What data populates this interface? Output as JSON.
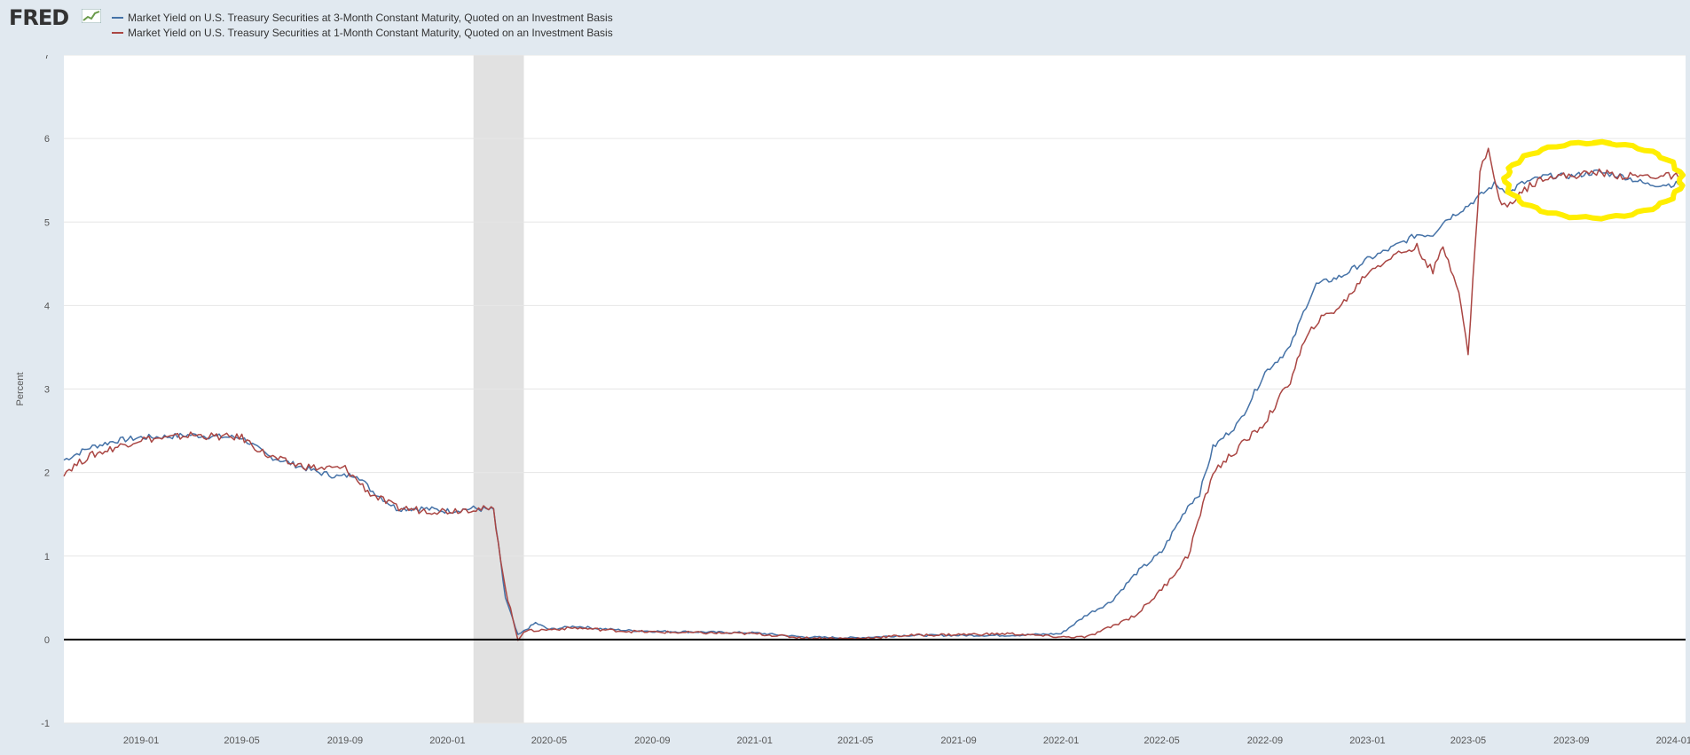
{
  "app": {
    "logo_text": "FRED"
  },
  "legend": [
    {
      "label": "Market Yield on U.S. Treasury Securities at 3-Month Constant Maturity, Quoted on an Investment Basis",
      "color": "#4572a7"
    },
    {
      "label": "Market Yield on U.S. Treasury Securities at 1-Month Constant Maturity, Quoted on an Investment Basis",
      "color": "#aa4643"
    }
  ],
  "colors": {
    "recession_band": "#e1e1e1",
    "annotation": "#ffee00",
    "zero_line": "#000000"
  },
  "chart_data": {
    "type": "line",
    "ylabel": "Percent",
    "ylim": [
      -1,
      7
    ],
    "yticks": [
      -1,
      0,
      1,
      2,
      3,
      4,
      5,
      6,
      7
    ],
    "xlim": [
      "2018-10-01",
      "2024-01-15"
    ],
    "xticks": [
      "2019-01",
      "2019-05",
      "2019-09",
      "2020-01",
      "2020-05",
      "2020-09",
      "2021-01",
      "2021-05",
      "2021-09",
      "2022-01",
      "2022-05",
      "2022-09",
      "2023-01",
      "2023-05",
      "2023-09",
      "2024-01"
    ],
    "grid": true,
    "legend_position": "top-left",
    "recession": {
      "start": "2020-02-01",
      "end": "2020-04-01"
    },
    "annotation": {
      "shape": "hand-drawn ellipse",
      "x": [
        "2023-06-15",
        "2024-01-10"
      ],
      "y": [
        5.05,
        5.95
      ]
    },
    "series": [
      {
        "name": "Market Yield on U.S. Treasury Securities at 3-Month Constant Maturity, Quoted on an Investment Basis",
        "color": "#4572a7",
        "points": [
          [
            "2018-10-01",
            2.15
          ],
          [
            "2018-11-01",
            2.3
          ],
          [
            "2018-12-01",
            2.38
          ],
          [
            "2019-01-01",
            2.42
          ],
          [
            "2019-02-01",
            2.43
          ],
          [
            "2019-03-01",
            2.45
          ],
          [
            "2019-04-01",
            2.43
          ],
          [
            "2019-05-01",
            2.42
          ],
          [
            "2019-06-01",
            2.2
          ],
          [
            "2019-07-01",
            2.1
          ],
          [
            "2019-08-01",
            2.0
          ],
          [
            "2019-08-25",
            1.95
          ],
          [
            "2019-09-15",
            1.98
          ],
          [
            "2019-10-01",
            1.8
          ],
          [
            "2019-11-01",
            1.57
          ],
          [
            "2019-12-01",
            1.57
          ],
          [
            "2020-01-01",
            1.54
          ],
          [
            "2020-02-01",
            1.57
          ],
          [
            "2020-02-25",
            1.55
          ],
          [
            "2020-03-10",
            0.5
          ],
          [
            "2020-03-25",
            0.05
          ],
          [
            "2020-04-01",
            0.1
          ],
          [
            "2020-04-15",
            0.2
          ],
          [
            "2020-05-01",
            0.12
          ],
          [
            "2020-06-01",
            0.16
          ],
          [
            "2020-07-01",
            0.13
          ],
          [
            "2020-08-01",
            0.11
          ],
          [
            "2020-09-01",
            0.1
          ],
          [
            "2020-11-01",
            0.09
          ],
          [
            "2021-01-01",
            0.08
          ],
          [
            "2021-03-01",
            0.03
          ],
          [
            "2021-05-01",
            0.02
          ],
          [
            "2021-07-01",
            0.05
          ],
          [
            "2021-09-01",
            0.05
          ],
          [
            "2021-11-01",
            0.05
          ],
          [
            "2022-01-01",
            0.07
          ],
          [
            "2022-02-01",
            0.3
          ],
          [
            "2022-03-01",
            0.45
          ],
          [
            "2022-04-01",
            0.8
          ],
          [
            "2022-05-01",
            1.05
          ],
          [
            "2022-06-01",
            1.6
          ],
          [
            "2022-06-15",
            1.75
          ],
          [
            "2022-07-01",
            2.3
          ],
          [
            "2022-08-01",
            2.6
          ],
          [
            "2022-09-01",
            3.2
          ],
          [
            "2022-10-01",
            3.5
          ],
          [
            "2022-10-20",
            4.0
          ],
          [
            "2022-11-01",
            4.25
          ],
          [
            "2022-12-01",
            4.35
          ],
          [
            "2023-01-01",
            4.55
          ],
          [
            "2023-02-01",
            4.7
          ],
          [
            "2023-03-01",
            4.85
          ],
          [
            "2023-03-20",
            4.85
          ],
          [
            "2023-04-01",
            5.0
          ],
          [
            "2023-05-01",
            5.2
          ],
          [
            "2023-06-01",
            5.45
          ],
          [
            "2023-06-20",
            5.35
          ],
          [
            "2023-07-01",
            5.45
          ],
          [
            "2023-08-01",
            5.55
          ],
          [
            "2023-09-01",
            5.55
          ],
          [
            "2023-10-01",
            5.6
          ],
          [
            "2023-11-01",
            5.55
          ],
          [
            "2023-12-01",
            5.45
          ],
          [
            "2024-01-01",
            5.45
          ],
          [
            "2024-01-12",
            5.47
          ]
        ]
      },
      {
        "name": "Market Yield on U.S. Treasury Securities at 1-Month Constant Maturity, Quoted on an Investment Basis",
        "color": "#aa4643",
        "points": [
          [
            "2018-10-01",
            2.0
          ],
          [
            "2018-11-01",
            2.2
          ],
          [
            "2018-12-01",
            2.3
          ],
          [
            "2019-01-01",
            2.4
          ],
          [
            "2019-02-01",
            2.41
          ],
          [
            "2019-03-01",
            2.45
          ],
          [
            "2019-04-01",
            2.43
          ],
          [
            "2019-05-01",
            2.42
          ],
          [
            "2019-06-01",
            2.2
          ],
          [
            "2019-07-01",
            2.1
          ],
          [
            "2019-08-01",
            2.05
          ],
          [
            "2019-09-01",
            2.05
          ],
          [
            "2019-10-01",
            1.75
          ],
          [
            "2019-11-01",
            1.58
          ],
          [
            "2019-12-01",
            1.55
          ],
          [
            "2020-01-01",
            1.54
          ],
          [
            "2020-02-01",
            1.57
          ],
          [
            "2020-02-25",
            1.55
          ],
          [
            "2020-03-10",
            0.6
          ],
          [
            "2020-03-25",
            0.0
          ],
          [
            "2020-04-01",
            0.1
          ],
          [
            "2020-05-01",
            0.12
          ],
          [
            "2020-06-01",
            0.14
          ],
          [
            "2020-07-01",
            0.12
          ],
          [
            "2020-08-01",
            0.1
          ],
          [
            "2020-09-01",
            0.09
          ],
          [
            "2020-11-01",
            0.08
          ],
          [
            "2021-01-01",
            0.07
          ],
          [
            "2021-03-01",
            0.02
          ],
          [
            "2021-05-01",
            0.01
          ],
          [
            "2021-07-01",
            0.05
          ],
          [
            "2021-09-01",
            0.06
          ],
          [
            "2021-11-01",
            0.07
          ],
          [
            "2022-01-01",
            0.03
          ],
          [
            "2022-02-01",
            0.03
          ],
          [
            "2022-03-01",
            0.15
          ],
          [
            "2022-04-01",
            0.3
          ],
          [
            "2022-05-01",
            0.6
          ],
          [
            "2022-06-01",
            1.0
          ],
          [
            "2022-07-01",
            2.0
          ],
          [
            "2022-08-01",
            2.3
          ],
          [
            "2022-09-01",
            2.6
          ],
          [
            "2022-10-01",
            3.1
          ],
          [
            "2022-10-15",
            3.5
          ],
          [
            "2022-11-01",
            3.8
          ],
          [
            "2022-12-01",
            4.0
          ],
          [
            "2023-01-01",
            4.4
          ],
          [
            "2023-02-01",
            4.6
          ],
          [
            "2023-03-01",
            4.7
          ],
          [
            "2023-03-20",
            4.4
          ],
          [
            "2023-04-01",
            4.7
          ],
          [
            "2023-04-20",
            4.2
          ],
          [
            "2023-05-01",
            3.4
          ],
          [
            "2023-05-15",
            5.6
          ],
          [
            "2023-05-25",
            5.9
          ],
          [
            "2023-06-01",
            5.5
          ],
          [
            "2023-06-10",
            5.2
          ],
          [
            "2023-06-20",
            5.2
          ],
          [
            "2023-07-01",
            5.35
          ],
          [
            "2023-08-01",
            5.55
          ],
          [
            "2023-09-01",
            5.55
          ],
          [
            "2023-10-01",
            5.6
          ],
          [
            "2023-11-01",
            5.55
          ],
          [
            "2023-12-01",
            5.55
          ],
          [
            "2024-01-01",
            5.55
          ],
          [
            "2024-01-12",
            5.53
          ]
        ]
      }
    ]
  }
}
